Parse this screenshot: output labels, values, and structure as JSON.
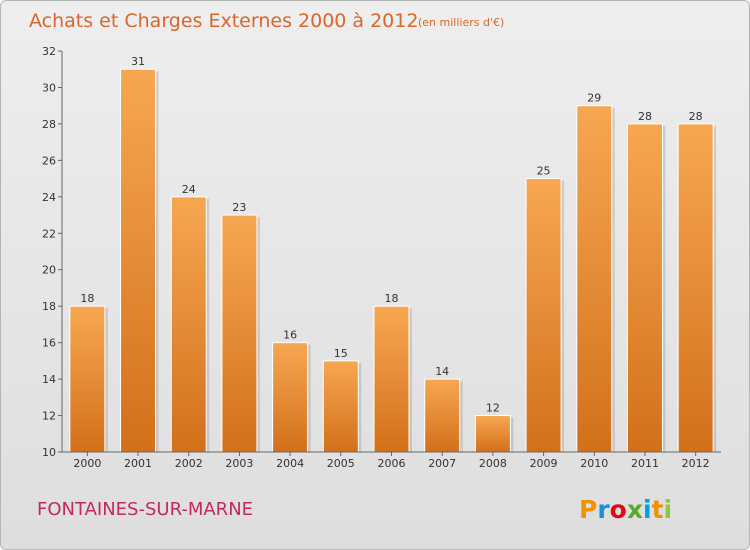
{
  "header": {
    "title": "Achats et Charges Externes 2000 à 2012",
    "unit": "(en milliers d'€)"
  },
  "footer": {
    "commune": "FONTAINES-SUR-MARNE",
    "brand": "Proxiti",
    "brand_colors": [
      "#f39200",
      "#1d8fd2",
      "#e30613",
      "#5aab2d",
      "#009fe3",
      "#f39200",
      "#8dc63f"
    ]
  },
  "colors": {
    "bar_light": "#f7a751",
    "bar_dark": "#d3701a",
    "title": "#d9662a",
    "commune": "#c32b57"
  },
  "chart_data": {
    "type": "bar",
    "title": "Achats et Charges Externes 2000 à 2012",
    "subtitle": "(en milliers d'€)",
    "categories": [
      "2000",
      "2001",
      "2002",
      "2003",
      "2004",
      "2005",
      "2006",
      "2007",
      "2008",
      "2009",
      "2010",
      "2011",
      "2012"
    ],
    "values": [
      18,
      31,
      24,
      23,
      16,
      15,
      18,
      14,
      12,
      25,
      29,
      28,
      28
    ],
    "ylim": [
      10,
      32
    ],
    "yticks": [
      10,
      12,
      14,
      16,
      18,
      20,
      22,
      24,
      26,
      28,
      30,
      32
    ],
    "grid": false
  }
}
